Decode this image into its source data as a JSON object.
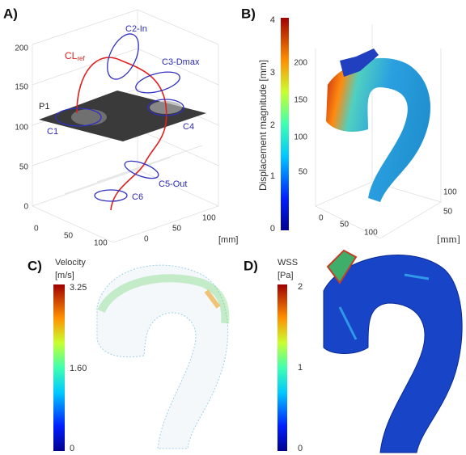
{
  "panels": [
    {
      "label": "A)",
      "z_ticks": [
        "0",
        "50",
        "100",
        "150",
        "200"
      ],
      "x_ticks": [
        "0",
        "50",
        "100"
      ],
      "y_ticks": [
        "0",
        "50",
        "100"
      ],
      "unit": "[mm]",
      "centerline": {
        "main": "CL",
        "sub": "ref"
      },
      "annotations": [
        "C2-In",
        "C3-Dmax",
        "P1",
        "C1",
        "C4",
        "C5-Out",
        "C6"
      ]
    },
    {
      "label": "B)",
      "colorbar_title": "Displacement magnitude [mm]",
      "colorbar_ticks": [
        "0",
        "1",
        "2",
        "3",
        "4"
      ],
      "z_ticks": [
        "50",
        "100",
        "150",
        "200"
      ],
      "x_ticks": [
        "0",
        "50",
        "100"
      ],
      "y_ticks": [
        "50",
        "100"
      ],
      "unit": "[mm]"
    },
    {
      "label": "C)",
      "colorbar_title": "Velocity",
      "colorbar_unit": "[m/s]",
      "colorbar_ticks": [
        "3.25",
        "1.60",
        "0"
      ]
    },
    {
      "label": "D)",
      "colorbar_title": "WSS",
      "colorbar_unit": "[Pa]",
      "colorbar_ticks": [
        "2",
        "1",
        "0"
      ]
    }
  ]
}
